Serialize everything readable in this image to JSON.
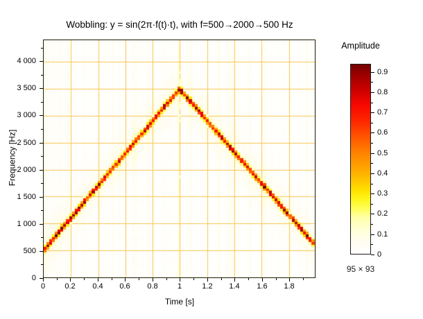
{
  "figure": {
    "title": "Wobbling: y = sin(2π·f(t)·t), with f=500→2000→500 Hz",
    "size_note": "95 × 93"
  },
  "chart_data": {
    "type": "heatmap",
    "subtype": "spectrogram",
    "title": "Wobbling: y = sin(2π·f(t)·t), with f=500→2000→500 Hz",
    "xlabel": "Time [s]",
    "ylabel": "Frequency [Hz]",
    "xlim": [
      0,
      1.99
    ],
    "ylim": [
      0,
      4400
    ],
    "grid": true,
    "grid_color": "#f8c54f",
    "xticks": {
      "major": [
        0,
        0.2,
        0.4,
        0.6,
        0.8,
        1,
        1.2,
        1.4,
        1.6,
        1.8
      ],
      "labels": [
        "0",
        "0.2",
        "0.4",
        "0.6",
        "0.8",
        "1",
        "1.2",
        "1.4",
        "1.6",
        "1.8"
      ],
      "minor_step": 0.1
    },
    "yticks": {
      "major": [
        0,
        500,
        1000,
        1500,
        2000,
        2500,
        3000,
        3500,
        4000
      ],
      "labels": [
        "0",
        "500",
        "1 000",
        "1 500",
        "2 000",
        "2 500",
        "3 000",
        "3 500",
        "4 000"
      ],
      "minor_step": 250
    },
    "matrix": {
      "cols": 95,
      "rows": 93,
      "note": "95 × 93"
    },
    "ridge_instantaneous_frequency": {
      "description": "Dominant spectral ridge: triangular sweep of instantaneous frequency",
      "segments": [
        {
          "t0": 0,
          "f0": 500,
          "t1": 1,
          "f1": 3500
        },
        {
          "t0": 1,
          "f0": 3500,
          "t1": 1.99,
          "f1": 620
        }
      ],
      "ridge_sigma_hz": 55,
      "halo_sigma_hz": 380
    },
    "colorbar": {
      "title": "Amplitude",
      "min": 0,
      "max": 0.94,
      "ticks": [
        0,
        0.1,
        0.2,
        0.3,
        0.4,
        0.5,
        0.6,
        0.7,
        0.8,
        0.9
      ],
      "tick_labels": [
        "0",
        "0.1",
        "0.2",
        "0.3",
        "0.4",
        "0.5",
        "0.6",
        "0.7",
        "0.8",
        "0.9"
      ],
      "minor_step": 0.05
    },
    "colormap": [
      {
        "v": 0.0,
        "c": "#ffffff"
      },
      {
        "v": 0.06,
        "c": "#fffdf0"
      },
      {
        "v": 0.12,
        "c": "#ffffd5"
      },
      {
        "v": 0.18,
        "c": "#ffffa8"
      },
      {
        "v": 0.22,
        "c": "#ffff60"
      },
      {
        "v": 0.27,
        "c": "#fff61e"
      },
      {
        "v": 0.31,
        "c": "#ffe400"
      },
      {
        "v": 0.36,
        "c": "#ffc700"
      },
      {
        "v": 0.42,
        "c": "#ffa800"
      },
      {
        "v": 0.5,
        "c": "#ff8300"
      },
      {
        "v": 0.58,
        "c": "#ff5500"
      },
      {
        "v": 0.66,
        "c": "#ff2600"
      },
      {
        "v": 0.74,
        "c": "#f70700"
      },
      {
        "v": 0.82,
        "c": "#c80000"
      },
      {
        "v": 0.89,
        "c": "#9b0000"
      },
      {
        "v": 0.94,
        "c": "#750000"
      }
    ]
  }
}
